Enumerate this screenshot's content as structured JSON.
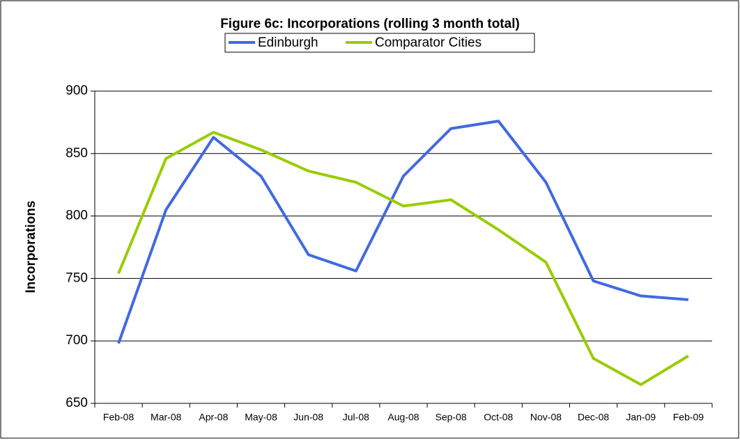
{
  "chart_data": {
    "type": "line",
    "title": "Figure 6c: Incorporations (rolling 3 month total)",
    "y_label": "Incorporations",
    "categories": [
      "Feb-08",
      "Mar-08",
      "Apr-08",
      "May-08",
      "Jun-08",
      "Jul-08",
      "Aug-08",
      "Sep-08",
      "Oct-08",
      "Nov-08",
      "Dec-08",
      "Jan-09",
      "Feb-09"
    ],
    "series": [
      {
        "name": "Edinburgh",
        "color": "#4169e1",
        "values": [
          698,
          805,
          863,
          832,
          769,
          756,
          832,
          870,
          876,
          827,
          748,
          736,
          733
        ]
      },
      {
        "name": "Comparator Cities",
        "color": "#99cc00",
        "values": [
          754,
          846,
          867,
          853,
          836,
          827,
          808,
          813,
          789,
          763,
          686,
          665,
          688
        ]
      }
    ],
    "ylim": [
      650,
      900
    ],
    "yticks": [
      650,
      700,
      750,
      800,
      850,
      900
    ],
    "grid": true,
    "legend": "top"
  }
}
